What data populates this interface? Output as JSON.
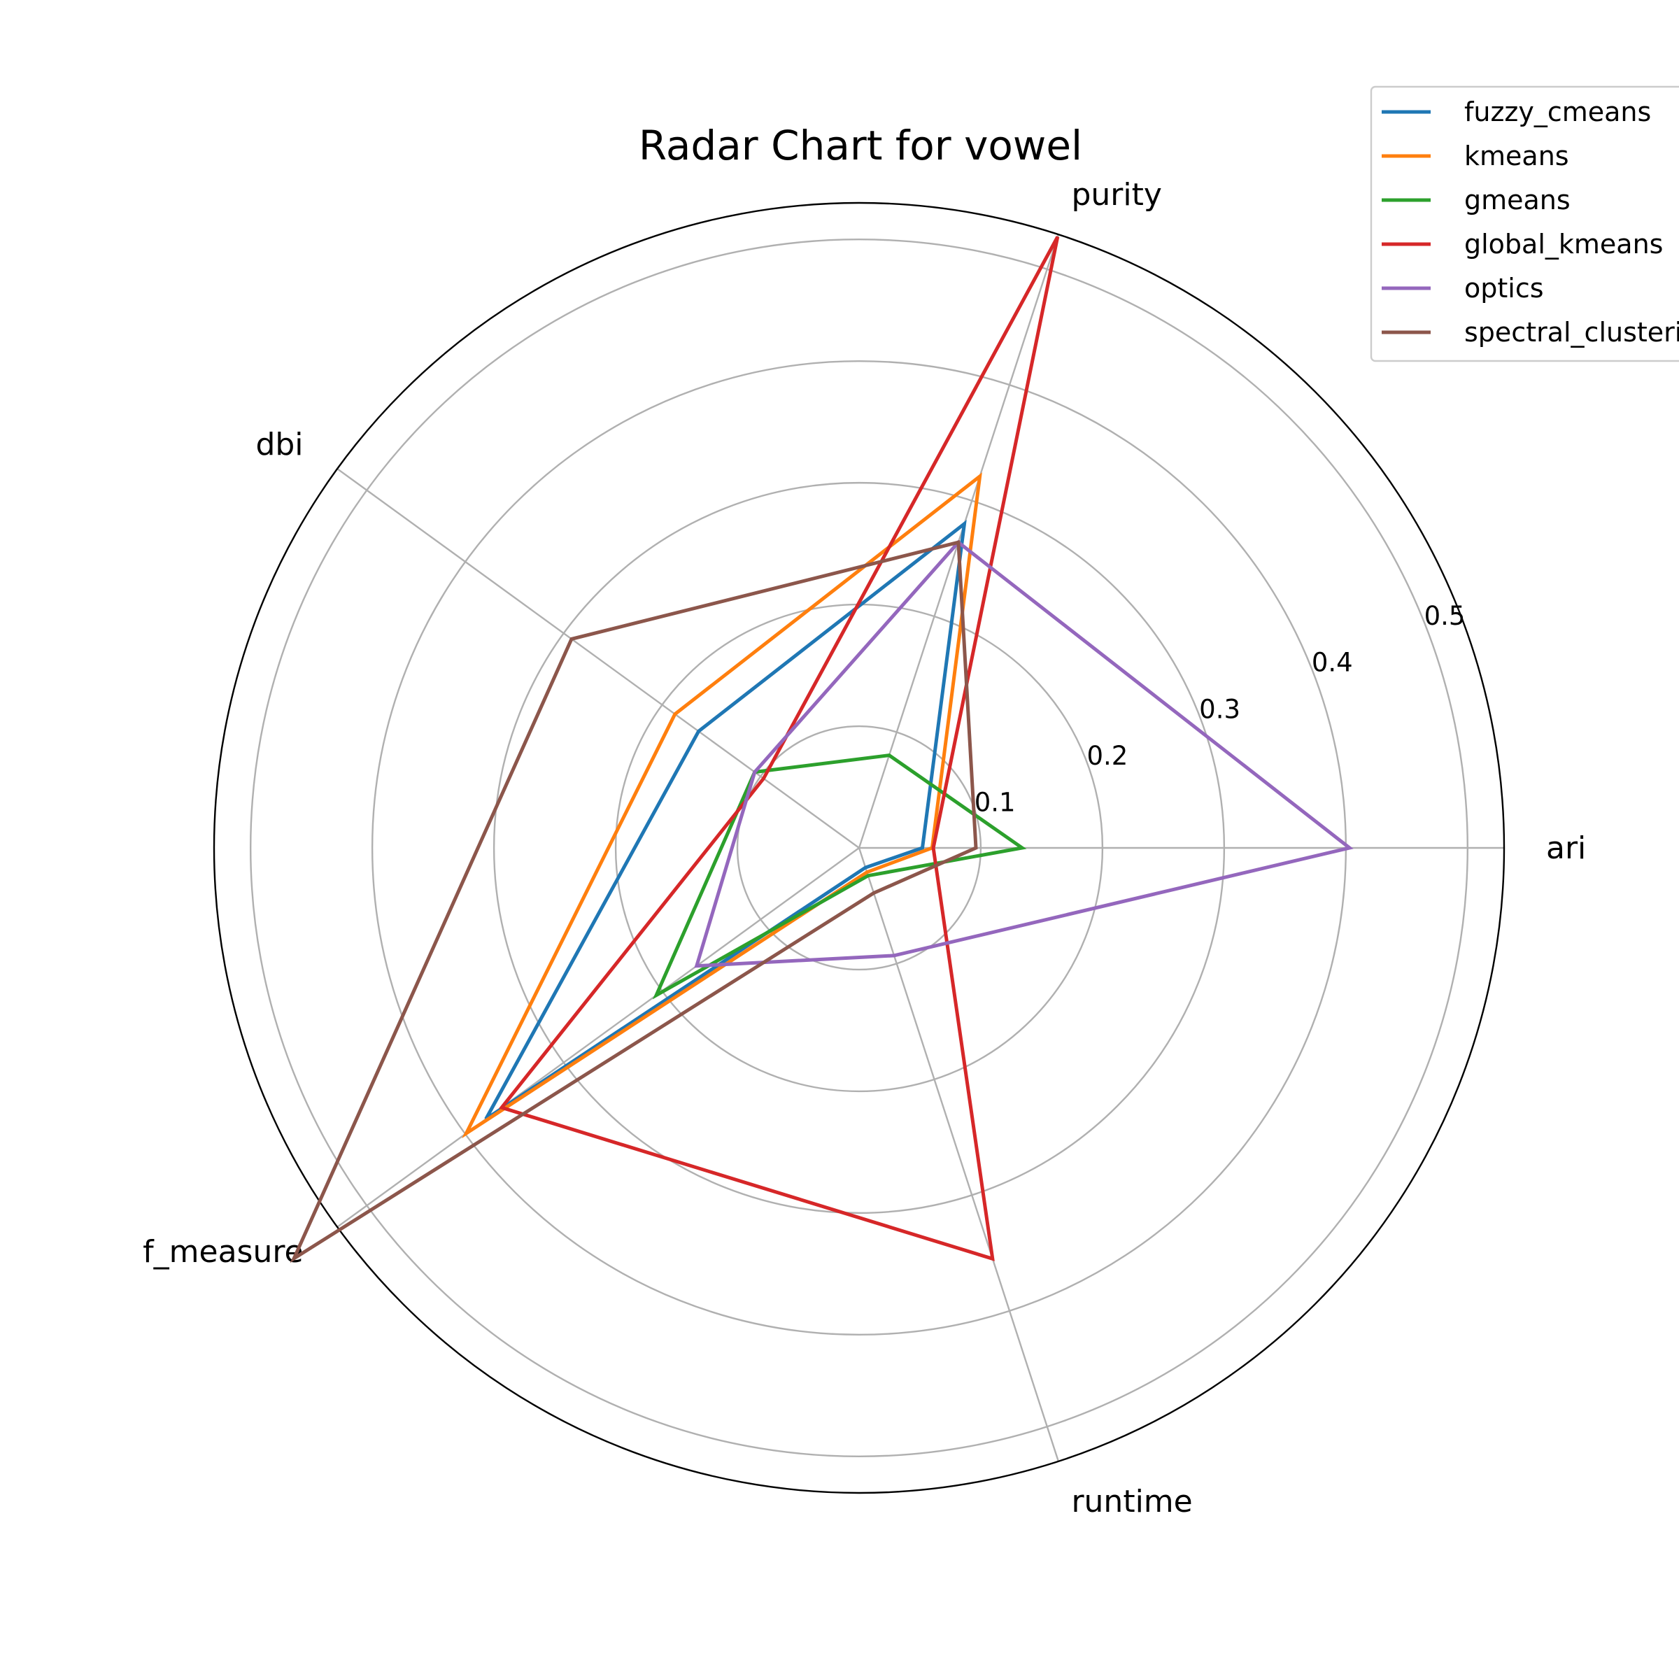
{
  "chart_data": {
    "type": "radar",
    "title": "Radar Chart for vowel",
    "axes": [
      "ari",
      "purity",
      "dbi",
      "f_measure",
      "runtime"
    ],
    "radial_ticks": [
      "0.1",
      "0.2",
      "0.3",
      "0.4",
      "0.5"
    ],
    "rlim": [
      0,
      0.53
    ],
    "grid": true,
    "legend_position": "top-right",
    "series": [
      {
        "name": "fuzzy_cmeans",
        "color": "#1f77b4",
        "values": [
          0.052,
          0.28,
          0.163,
          0.379,
          0.017
        ]
      },
      {
        "name": "kmeans",
        "color": "#ff7f0e",
        "values": [
          0.06,
          0.321,
          0.187,
          0.399,
          0.021
        ]
      },
      {
        "name": "gmeans",
        "color": "#2ca02c",
        "values": [
          0.134,
          0.08,
          0.106,
          0.206,
          0.024
        ]
      },
      {
        "name": "global_kmeans",
        "color": "#d62728",
        "values": [
          0.061,
          0.528,
          0.097,
          0.363,
          0.355
        ]
      },
      {
        "name": "optics",
        "color": "#9467bd",
        "values": [
          0.403,
          0.264,
          0.106,
          0.165,
          0.093
        ]
      },
      {
        "name": "spectral_clustering",
        "color": "#8c564b",
        "values": [
          0.096,
          0.264,
          0.292,
          0.574,
          0.039
        ]
      }
    ]
  }
}
